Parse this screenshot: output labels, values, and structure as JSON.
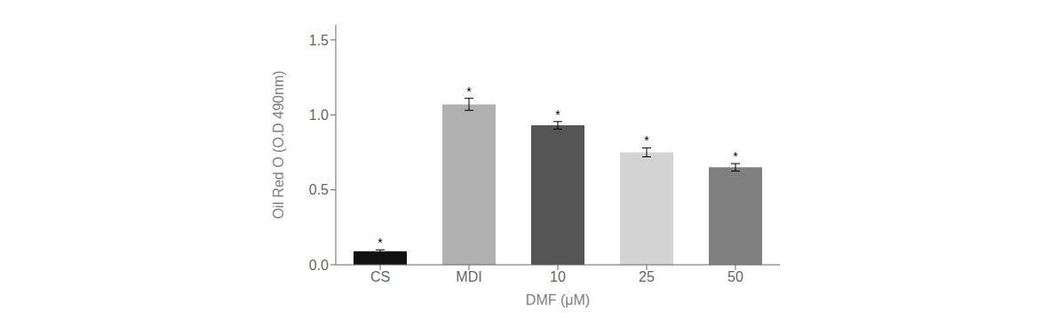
{
  "chart_data": {
    "type": "bar",
    "xlabel": "DMF (μM)",
    "ylabel": "Oil Red O (O.D 490nm)",
    "categories": [
      "CS",
      "MDI",
      "10",
      "25",
      "50"
    ],
    "values": [
      0.09,
      1.07,
      0.93,
      0.75,
      0.65
    ],
    "errors": [
      0.01,
      0.04,
      0.025,
      0.03,
      0.025
    ],
    "colors": [
      "#111111",
      "#b0b0b0",
      "#555555",
      "#d3d3d3",
      "#808080"
    ],
    "ylim": [
      0.0,
      1.6
    ],
    "yticks": [
      {
        "value": 0.0,
        "label": "0.0"
      },
      0.5,
      {
        "value": 1.0,
        "label": "1.0"
      },
      1.5
    ],
    "grid": false,
    "annotations": [
      {
        "text": "*",
        "category": "CS"
      },
      {
        "text": "*",
        "category": "MDI"
      },
      {
        "text": "*",
        "category": "10"
      },
      {
        "text": "*",
        "category": "25"
      },
      {
        "text": "*",
        "category": "50"
      }
    ]
  }
}
